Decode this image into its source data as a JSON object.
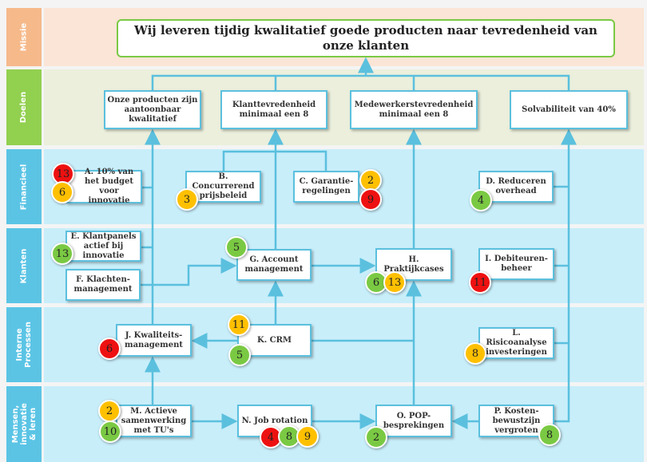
{
  "rows": {
    "missie": "Missie",
    "doelen": "Doelen",
    "financieel": "Financieel",
    "klanten": "Klanten",
    "interne": "Interne Processen",
    "mensen": "Mensen, innovatie & leren"
  },
  "mission": "Wij leveren tijdig kwalitatief goede producten naar tevredenheid van onze klanten",
  "goals": [
    "Onze producten zijn aantoonbaar kwalitatief",
    "Klanttevredenheid minimaal een 8",
    "Medewerkerstevredenheid minimaal een 8",
    "Solvabiliteit van 40%"
  ],
  "boxes": {
    "A": "A. 10% van het budget voor innovatie",
    "B": "B. Concurrerend prijsbeleid",
    "C": "C. Garantie-regelingen",
    "D": "D. Reduceren overhead",
    "E": "E. Klantpanels actief bij innovatie",
    "F": "F. Klachten-management",
    "G": "G. Account management",
    "H": "H. Praktijkcases",
    "I": "I. Debiteuren-beheer",
    "J": "J. Kwaliteits-management",
    "K": "K.  CRM",
    "L": "L. Risicoanalyse investeringen",
    "M": "M. Actieve samenwerking met TU's",
    "N": "N. Job rotation",
    "O": "O. POP-besprekingen",
    "P": "P. Kosten-bewustzijn vergroten"
  },
  "colors": {
    "red": "#ee1111",
    "yellow": "#ffc000",
    "green": "#7ac943",
    "line": "#5bc0de"
  },
  "badges": [
    {
      "box": "A",
      "n": "13",
      "c": "red"
    },
    {
      "box": "A",
      "n": "6",
      "c": "yellow"
    },
    {
      "box": "B",
      "n": "3",
      "c": "yellow"
    },
    {
      "box": "C",
      "n": "2",
      "c": "yellow"
    },
    {
      "box": "C",
      "n": "9",
      "c": "red"
    },
    {
      "box": "D",
      "n": "4",
      "c": "green"
    },
    {
      "box": "E",
      "n": "13",
      "c": "green"
    },
    {
      "box": "G",
      "n": "5",
      "c": "green"
    },
    {
      "box": "H",
      "n": "6",
      "c": "green"
    },
    {
      "box": "H",
      "n": "13",
      "c": "yellow"
    },
    {
      "box": "I",
      "n": "11",
      "c": "red"
    },
    {
      "box": "J",
      "n": "6",
      "c": "red"
    },
    {
      "box": "K",
      "n": "11",
      "c": "yellow"
    },
    {
      "box": "K",
      "n": "5",
      "c": "green"
    },
    {
      "box": "L",
      "n": "8",
      "c": "yellow"
    },
    {
      "box": "M",
      "n": "2",
      "c": "yellow"
    },
    {
      "box": "M",
      "n": "10",
      "c": "green"
    },
    {
      "box": "N",
      "n": "4",
      "c": "red"
    },
    {
      "box": "N",
      "n": "8",
      "c": "green"
    },
    {
      "box": "N",
      "n": "9",
      "c": "yellow"
    },
    {
      "box": "O",
      "n": "2",
      "c": "green"
    },
    {
      "box": "P",
      "n": "8",
      "c": "green"
    }
  ]
}
